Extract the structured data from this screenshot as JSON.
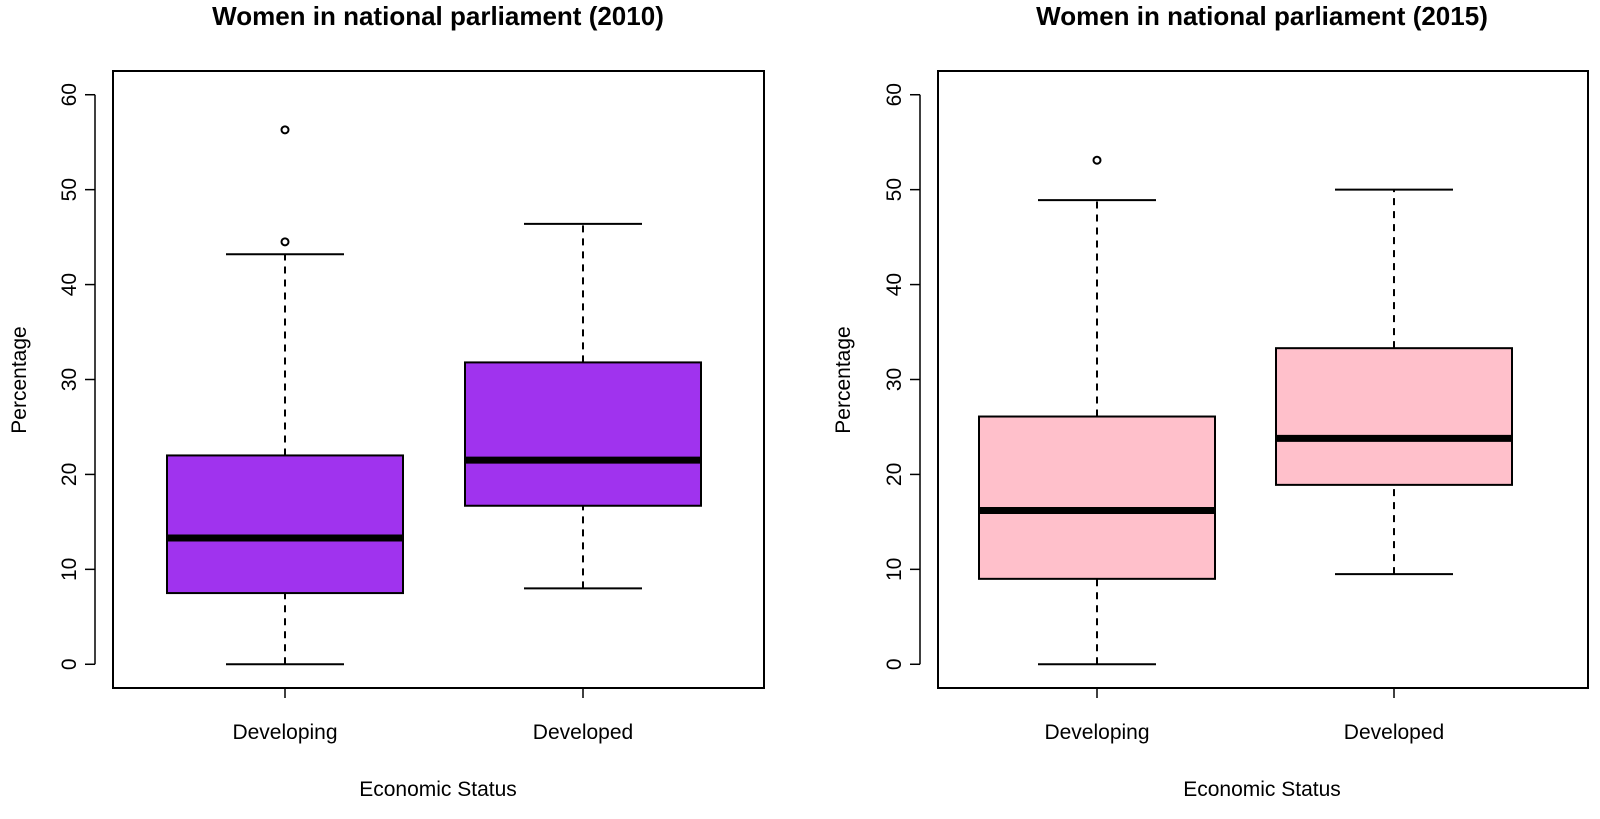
{
  "chart_data": [
    {
      "type": "boxplot",
      "title": "Women in national parliament (2010)",
      "xlabel": "Economic Status",
      "ylabel": "Percentage",
      "categories": [
        "Developing",
        "Developed"
      ],
      "ylim": [
        -2.5,
        62.5
      ],
      "yticks": [
        0,
        10,
        20,
        30,
        40,
        50,
        60
      ],
      "fill_color": "#a033ee",
      "grid": false,
      "boxes": [
        {
          "category": "Developing",
          "whisker_low": 0,
          "q1": 7.5,
          "median": 13.3,
          "q3": 22.0,
          "whisker_high": 43.2,
          "outliers": [
            44.5,
            56.3
          ]
        },
        {
          "category": "Developed",
          "whisker_low": 8.0,
          "q1": 16.7,
          "median": 21.5,
          "q3": 31.8,
          "whisker_high": 46.4,
          "outliers": []
        }
      ]
    },
    {
      "type": "boxplot",
      "title": "Women in national parliament (2015)",
      "xlabel": "Economic Status",
      "ylabel": "Percentage",
      "categories": [
        "Developing",
        "Developed"
      ],
      "ylim": [
        -2.5,
        62.5
      ],
      "yticks": [
        0,
        10,
        20,
        30,
        40,
        50,
        60
      ],
      "fill_color": "#ffc0cb",
      "grid": false,
      "boxes": [
        {
          "category": "Developing",
          "whisker_low": 0,
          "q1": 9.0,
          "median": 16.2,
          "q3": 26.1,
          "whisker_high": 48.9,
          "outliers": [
            53.1
          ]
        },
        {
          "category": "Developed",
          "whisker_low": 9.5,
          "q1": 18.9,
          "median": 23.8,
          "q3": 33.3,
          "whisker_high": 50.0,
          "outliers": []
        }
      ]
    }
  ]
}
